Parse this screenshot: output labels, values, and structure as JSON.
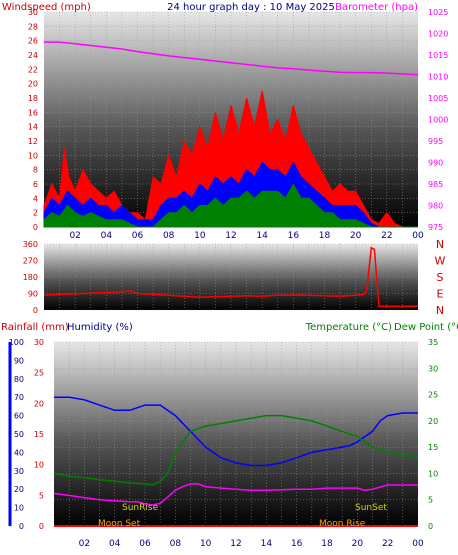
{
  "title": "24 hour graph day : 10 May 2025",
  "colors": {
    "wind": "#ff0000",
    "gust": "#0000ff",
    "avg": "#008000",
    "baro": "#ff00ff",
    "temp": "#0000ff",
    "dew": "#008000",
    "hum": "#ff00ff",
    "rain": "#ff0000",
    "dir": "#ff0000",
    "label_red": "#cc0000",
    "label_blue": "#000080",
    "label_green": "#008000",
    "sun_label": "#d4d400",
    "moon_label": "#ffa500"
  },
  "x_ticks": [
    "02",
    "04",
    "06",
    "08",
    "10",
    "12",
    "14",
    "16",
    "18",
    "20",
    "22",
    "00"
  ],
  "chart_data": [
    {
      "type": "line",
      "name": "wind-barometer",
      "left_label": "Windspeed (mph)",
      "right_label": "Barometer (hpa)",
      "left_ticks": [
        "30",
        "28",
        "26",
        "24",
        "22",
        "20",
        "18",
        "16",
        "14",
        "12",
        "10",
        "8",
        "6",
        "4",
        "2",
        "0"
      ],
      "right_ticks": [
        "1025",
        "1020",
        "1015",
        "1010",
        "1005",
        "1000",
        "995",
        "990",
        "985",
        "980",
        "975"
      ],
      "left_range": [
        0,
        30
      ],
      "right_range": [
        975,
        1025
      ],
      "x_range": [
        0,
        24
      ],
      "series": [
        {
          "role": "wind_max",
          "x": [
            0,
            0.5,
            1,
            1.3,
            1.6,
            2,
            2.5,
            3,
            3.5,
            4,
            4.5,
            5,
            5.5,
            6,
            6.5,
            7,
            7.5,
            8,
            8.5,
            9,
            9.5,
            10,
            10.5,
            11,
            11.5,
            12,
            12.5,
            13,
            13.5,
            14,
            14.5,
            15,
            15.5,
            16,
            16.5,
            17,
            17.5,
            18,
            18.5,
            19,
            19.5,
            20,
            20.5,
            21,
            21.5,
            22,
            22.5,
            23,
            23.5,
            24
          ],
          "y": [
            3,
            6,
            4,
            11,
            7,
            5,
            8,
            6,
            5,
            4,
            5,
            3,
            2,
            2,
            1,
            7,
            6,
            10,
            7,
            12,
            10,
            14,
            11,
            16,
            12,
            17,
            13,
            18,
            14,
            19,
            13,
            15,
            12,
            17,
            13,
            11,
            9,
            7,
            5,
            6,
            5,
            5,
            3,
            1,
            0.5,
            2,
            0.5,
            0,
            0,
            0
          ]
        },
        {
          "role": "wind_avg",
          "x": [
            0,
            0.5,
            1,
            1.5,
            2,
            2.5,
            3,
            3.5,
            4,
            4.5,
            5,
            5.5,
            6,
            6.5,
            7,
            7.5,
            8,
            8.5,
            9,
            9.5,
            10,
            10.5,
            11,
            11.5,
            12,
            12.5,
            13,
            13.5,
            14,
            14.5,
            15,
            15.5,
            16,
            16.5,
            17,
            17.5,
            18,
            18.5,
            19,
            19.5,
            20,
            20.5,
            21,
            21.5,
            22,
            22.5,
            23,
            23.5,
            24
          ],
          "y": [
            2,
            4,
            3,
            5,
            4,
            3,
            4,
            3,
            3,
            2,
            3,
            2,
            1,
            1,
            1,
            3,
            4,
            4,
            5,
            4,
            6,
            5,
            7,
            6,
            7,
            6,
            8,
            7,
            9,
            8,
            8,
            7,
            9,
            7,
            6,
            5,
            4,
            3,
            3,
            3,
            3,
            2,
            0.5,
            0,
            0,
            0,
            0,
            0,
            0
          ]
        },
        {
          "role": "wind_min",
          "x": [
            0,
            0.5,
            1,
            1.5,
            2,
            2.5,
            3,
            3.5,
            4,
            4.5,
            5,
            5.5,
            6,
            6.5,
            7,
            7.5,
            8,
            8.5,
            9,
            9.5,
            10,
            10.5,
            11,
            11.5,
            12,
            12.5,
            13,
            13.5,
            14,
            14.5,
            15,
            15.5,
            16,
            16.5,
            17,
            17.5,
            18,
            18.5,
            19,
            19.5,
            20,
            20.5,
            21,
            21.5,
            22,
            22.5,
            23,
            23.5,
            24
          ],
          "y": [
            1,
            2,
            1.5,
            3,
            2,
            1.5,
            2,
            1.5,
            1,
            1,
            1,
            0.5,
            0,
            0,
            0,
            1,
            2,
            2,
            3,
            2,
            3,
            3,
            4,
            3,
            4,
            4,
            5,
            4,
            5,
            5,
            5,
            4,
            6,
            4,
            4,
            3,
            2,
            2,
            1,
            1,
            1,
            0.5,
            0,
            0,
            0,
            0,
            0,
            0,
            0
          ]
        },
        {
          "role": "barometer",
          "x": [
            0,
            1,
            2,
            3,
            4,
            5,
            6,
            7,
            8,
            9,
            10,
            11,
            12,
            13,
            14,
            15,
            16,
            17,
            18,
            19,
            20,
            21,
            22,
            23,
            24
          ],
          "y": [
            1018,
            1018,
            1017.6,
            1017.2,
            1016.8,
            1016.4,
            1015.8,
            1015.3,
            1014.8,
            1014.4,
            1014,
            1013.6,
            1013.2,
            1012.8,
            1012.4,
            1012,
            1011.8,
            1011.5,
            1011.2,
            1011,
            1010.9,
            1010.9,
            1010.8,
            1010.6,
            1010.4
          ]
        }
      ]
    },
    {
      "type": "line",
      "name": "wind-direction",
      "left_ticks": [
        "360",
        "270",
        "180",
        "90",
        "0"
      ],
      "right_labels": [
        "N",
        "W",
        "S",
        "E",
        "N"
      ],
      "left_range": [
        0,
        360
      ],
      "x_range": [
        0,
        24
      ],
      "series": [
        {
          "role": "direction",
          "x": [
            0,
            1,
            2,
            3,
            4,
            5,
            5.5,
            6,
            7,
            8,
            9,
            10,
            11,
            12,
            13,
            14,
            15,
            16,
            17,
            18,
            19,
            20,
            20.5,
            20.7,
            21,
            21.2,
            21.5,
            22,
            23,
            24
          ],
          "y": [
            80,
            85,
            88,
            92,
            95,
            100,
            105,
            90,
            85,
            80,
            75,
            70,
            72,
            75,
            78,
            75,
            80,
            82,
            80,
            78,
            75,
            80,
            85,
            100,
            340,
            330,
            20,
            20,
            20,
            20
          ]
        }
      ]
    },
    {
      "type": "line",
      "name": "temp-humidity-rain",
      "left_label_1": "Rainfall (mm)",
      "left_label_2": "Humidity (%)",
      "right_label_1": "Temperature (°C)",
      "right_label_2": "Dew Point (°C)",
      "rain_ticks": [
        "100",
        "90",
        "80",
        "70",
        "60",
        "50",
        "40",
        "30",
        "20",
        "10",
        "0"
      ],
      "hum_ticks": [
        "30",
        "25",
        "20",
        "15",
        "10",
        "5",
        "0"
      ],
      "temp_ticks": [
        "35",
        "30",
        "25",
        "20",
        "15",
        "10",
        "5",
        "0"
      ],
      "rain_range": [
        0,
        100
      ],
      "hum_range": [
        0,
        30
      ],
      "temp_range": [
        0,
        35
      ],
      "x_range": [
        0,
        24
      ],
      "events": {
        "sunrise": "SunRise",
        "sunset": "SunSet",
        "moonset": "Moon Set",
        "moonrise": "Moon Rise"
      },
      "series": [
        {
          "role": "humidity",
          "x": [
            0,
            1,
            2,
            3,
            4,
            4.5,
            5,
            6,
            7,
            8,
            9,
            10,
            11,
            12,
            13,
            14,
            15,
            16,
            17,
            18,
            19,
            19.5,
            20,
            21,
            21.5,
            22,
            23,
            24
          ],
          "y": [
            24.5,
            24.5,
            24,
            23,
            22,
            22,
            22,
            23,
            23,
            21,
            18,
            15,
            13,
            12,
            11.5,
            11.5,
            12,
            13,
            14,
            14.5,
            15,
            15.3,
            16,
            18,
            20,
            21,
            21.5,
            21.5
          ]
        },
        {
          "role": "dewpoint",
          "x": [
            0,
            1,
            2,
            3,
            4,
            5,
            6,
            6.5,
            7,
            7.5,
            8,
            9,
            10,
            11,
            12,
            13,
            14,
            15,
            16,
            17,
            18,
            19,
            20,
            21,
            22,
            23,
            24
          ],
          "y": [
            10,
            9.5,
            9.2,
            8.8,
            8.5,
            8.2,
            8,
            7.8,
            8.5,
            10,
            14,
            18,
            19,
            19.5,
            20,
            20.5,
            21,
            21,
            20.5,
            20,
            19,
            18,
            17,
            15,
            14,
            13.5,
            13
          ]
        },
        {
          "role": "temperature",
          "x": [
            0,
            1,
            2,
            3,
            4,
            5,
            5.5,
            6,
            6.5,
            7,
            7.5,
            8,
            8.5,
            9,
            9.5,
            10,
            11,
            12,
            13,
            14,
            15,
            16,
            17,
            18,
            19,
            20,
            20.5,
            21,
            22,
            23,
            24
          ],
          "y": [
            6.2,
            5.8,
            5.4,
            5,
            4.8,
            4.6,
            4.6,
            4.2,
            4,
            4.3,
            5.5,
            6.8,
            7.5,
            8,
            8,
            7.5,
            7.2,
            7,
            6.8,
            6.8,
            6.9,
            7,
            7,
            7.2,
            7.2,
            7.2,
            6.8,
            7,
            7.8,
            7.8,
            7.8
          ]
        },
        {
          "role": "rainfall",
          "x": [
            0,
            24
          ],
          "y": [
            0,
            0
          ]
        }
      ]
    }
  ]
}
